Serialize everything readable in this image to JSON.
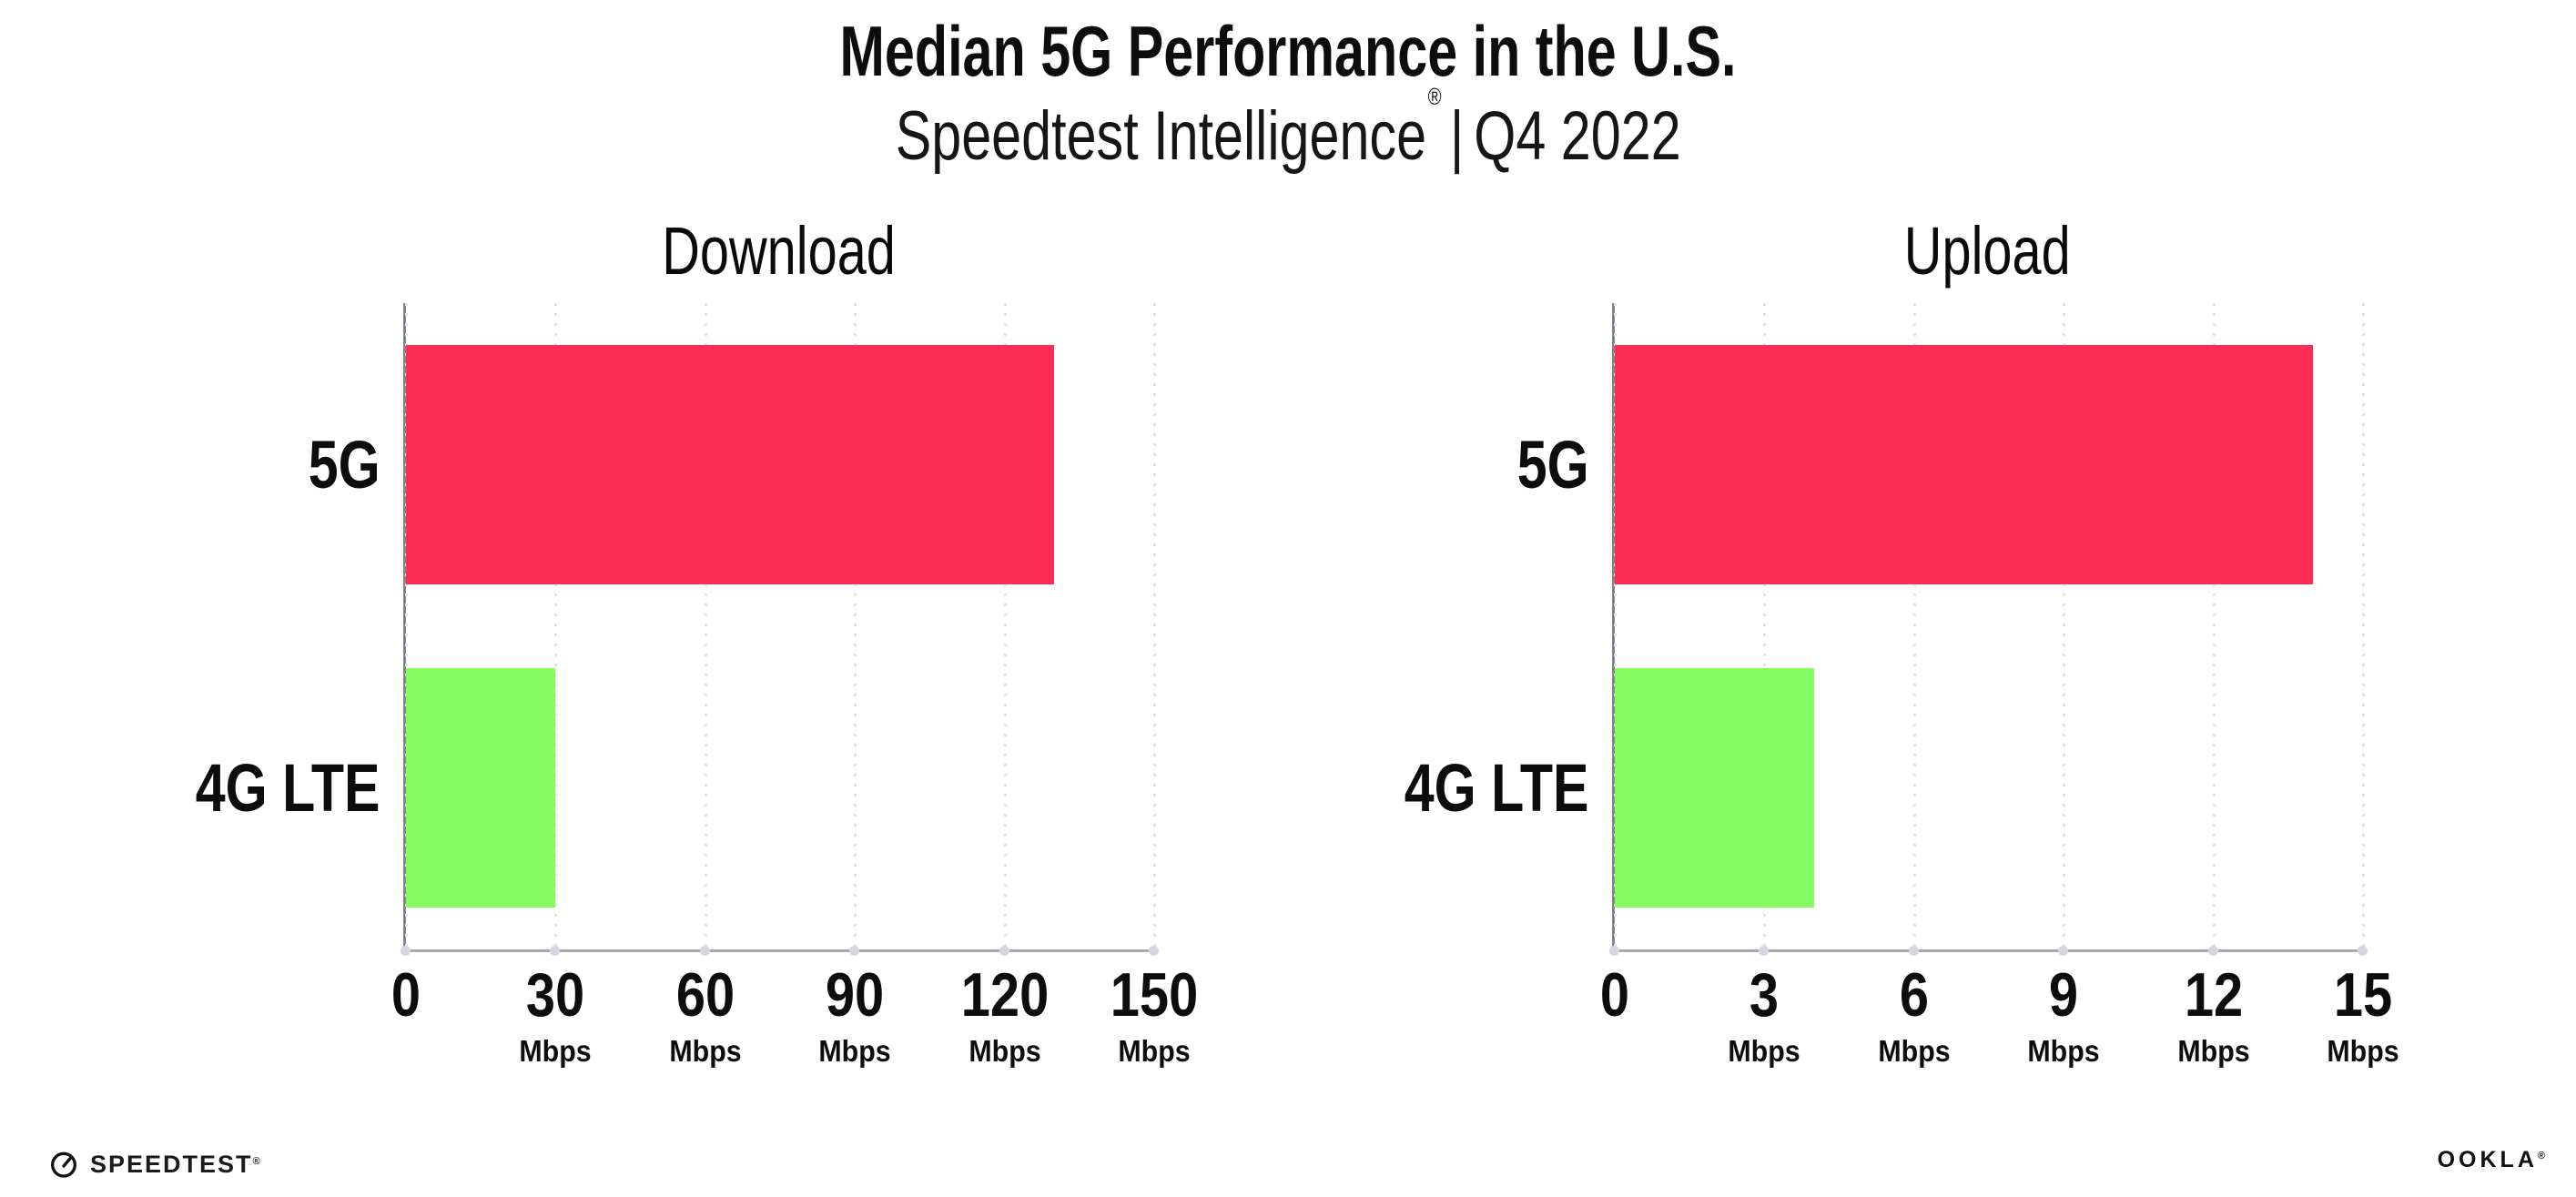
{
  "header": {
    "title": "Median 5G Performance in the U.S.",
    "subtitle_brand": "Speedtest Intelligence",
    "subtitle_registered_mark": "®",
    "subtitle_separator": "|",
    "subtitle_period": "Q4 2022"
  },
  "chart_data": [
    {
      "type": "bar",
      "orientation": "horizontal",
      "title": "Download",
      "categories": [
        "5G",
        "4G LTE"
      ],
      "values": [
        130,
        30
      ],
      "unit": "Mbps",
      "xlabel": "",
      "ylabel": "",
      "xlim": [
        0,
        150
      ],
      "xticks": [
        0,
        30,
        60,
        90,
        120,
        150
      ],
      "bar_colors": [
        "#FF2D55",
        "#85FB5F"
      ],
      "grid": "dotted-vertical-gridlines",
      "legend_position": "none"
    },
    {
      "type": "bar",
      "orientation": "horizontal",
      "title": "Upload",
      "categories": [
        "5G",
        "4G LTE"
      ],
      "values": [
        14,
        4
      ],
      "unit": "Mbps",
      "xlabel": "",
      "ylabel": "",
      "xlim": [
        0,
        15
      ],
      "xticks": [
        0,
        3,
        6,
        9,
        12,
        15
      ],
      "bar_colors": [
        "#FF2D55",
        "#85FB5F"
      ],
      "grid": "dotted-vertical-gridlines",
      "legend_position": "none"
    }
  ],
  "footer": {
    "speedtest_label": "SPEEDTEST",
    "speedtest_mark": "®",
    "ookla_label": "OOKLA",
    "ookla_mark": "®"
  },
  "colors": {
    "bar_5g": "#FF2D55",
    "bar_4g_lte": "#85FB5F",
    "gridline": "#E2E2EB",
    "x_axis": "#A9A9B0",
    "y_axis": "#83838B",
    "tick_dot": "#D6D6E0",
    "text": "#0D0D0D"
  }
}
